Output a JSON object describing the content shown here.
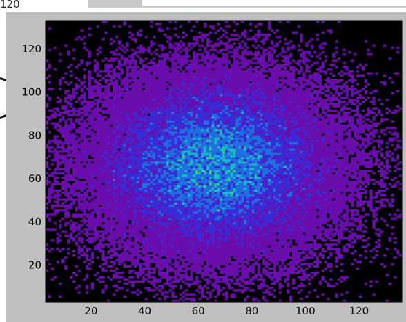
{
  "background": {
    "partial_tick_label": "120"
  },
  "chart_data": {
    "type": "heatmap",
    "description_kind": "2D histogram",
    "title": "",
    "xlabel": "",
    "ylabel": "",
    "xlim": [
      3,
      136
    ],
    "ylim": [
      3,
      133
    ],
    "x_ticks": [
      20,
      40,
      60,
      80,
      100,
      120
    ],
    "y_ticks": [
      20,
      40,
      60,
      80,
      100,
      120
    ],
    "x_tick_labels": [
      "20",
      "40",
      "60",
      "80",
      "100",
      "120"
    ],
    "y_tick_labels": [
      "20",
      "40",
      "60",
      "80",
      "100",
      "120"
    ],
    "distribution_center": [
      66,
      66
    ],
    "distribution_spread": [
      24,
      22
    ],
    "colormap": [
      "#000000",
      "#6a0dad",
      "#3b2bd6",
      "#1f6fe0",
      "#18b8c8",
      "#2fd47a"
    ],
    "axes_background": "#000000",
    "figure_background": "#bfbfbf",
    "grid": false
  }
}
